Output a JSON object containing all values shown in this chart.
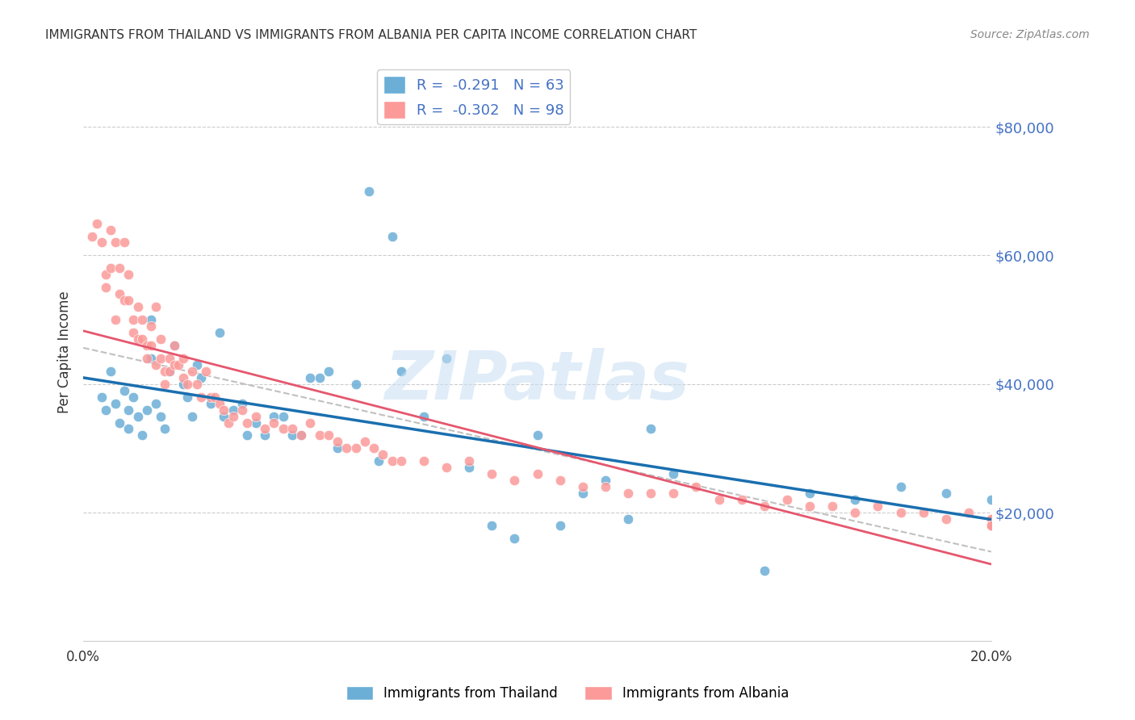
{
  "title": "IMMIGRANTS FROM THAILAND VS IMMIGRANTS FROM ALBANIA PER CAPITA INCOME CORRELATION CHART",
  "source": "Source: ZipAtlas.com",
  "xlabel_bottom": "",
  "ylabel": "Per Capita Income",
  "xlim": [
    0.0,
    0.2
  ],
  "ylim": [
    0,
    90000
  ],
  "x_ticks": [
    0.0,
    0.05,
    0.1,
    0.15,
    0.2
  ],
  "x_tick_labels": [
    "0.0%",
    "",
    "",
    "",
    "20.0%"
  ],
  "y_ticks": [
    20000,
    40000,
    60000,
    80000
  ],
  "y_tick_labels": [
    "$20,000",
    "$40,000",
    "$60,000",
    "$80,000"
  ],
  "legend_entry1": "R =  -0.291   N = 63",
  "legend_entry2": "R =  -0.302   N = 98",
  "color_thailand": "#6baed6",
  "color_albania": "#fb9a99",
  "color_trend_thailand": "#1a6faf",
  "color_trend_albania": "#e5576e",
  "color_trend_dashed": "#c0c0c0",
  "watermark": "ZIPatlas",
  "thailand_x": [
    0.004,
    0.005,
    0.006,
    0.007,
    0.008,
    0.009,
    0.01,
    0.01,
    0.011,
    0.012,
    0.013,
    0.014,
    0.015,
    0.015,
    0.016,
    0.017,
    0.018,
    0.019,
    0.02,
    0.022,
    0.023,
    0.024,
    0.025,
    0.026,
    0.028,
    0.03,
    0.031,
    0.033,
    0.035,
    0.036,
    0.038,
    0.04,
    0.042,
    0.044,
    0.046,
    0.048,
    0.05,
    0.052,
    0.054,
    0.056,
    0.06,
    0.063,
    0.065,
    0.068,
    0.07,
    0.075,
    0.08,
    0.085,
    0.09,
    0.095,
    0.1,
    0.105,
    0.11,
    0.115,
    0.12,
    0.125,
    0.13,
    0.15,
    0.16,
    0.17,
    0.18,
    0.19,
    0.2
  ],
  "thailand_y": [
    38000,
    36000,
    42000,
    37000,
    34000,
    39000,
    36000,
    33000,
    38000,
    35000,
    32000,
    36000,
    50000,
    44000,
    37000,
    35000,
    33000,
    42000,
    46000,
    40000,
    38000,
    35000,
    43000,
    41000,
    37000,
    48000,
    35000,
    36000,
    37000,
    32000,
    34000,
    32000,
    35000,
    35000,
    32000,
    32000,
    41000,
    41000,
    42000,
    30000,
    40000,
    70000,
    28000,
    63000,
    42000,
    35000,
    44000,
    27000,
    18000,
    16000,
    32000,
    18000,
    23000,
    25000,
    19000,
    33000,
    26000,
    11000,
    23000,
    22000,
    24000,
    23000,
    22000
  ],
  "albania_x": [
    0.002,
    0.003,
    0.004,
    0.005,
    0.005,
    0.006,
    0.006,
    0.007,
    0.007,
    0.008,
    0.008,
    0.009,
    0.009,
    0.01,
    0.01,
    0.011,
    0.011,
    0.012,
    0.012,
    0.013,
    0.013,
    0.014,
    0.014,
    0.015,
    0.015,
    0.016,
    0.016,
    0.017,
    0.017,
    0.018,
    0.018,
    0.019,
    0.019,
    0.02,
    0.02,
    0.021,
    0.022,
    0.022,
    0.023,
    0.024,
    0.025,
    0.026,
    0.027,
    0.028,
    0.029,
    0.03,
    0.031,
    0.032,
    0.033,
    0.035,
    0.036,
    0.038,
    0.04,
    0.042,
    0.044,
    0.046,
    0.048,
    0.05,
    0.052,
    0.054,
    0.056,
    0.058,
    0.06,
    0.062,
    0.064,
    0.066,
    0.068,
    0.07,
    0.075,
    0.08,
    0.085,
    0.09,
    0.095,
    0.1,
    0.105,
    0.11,
    0.115,
    0.12,
    0.125,
    0.13,
    0.135,
    0.14,
    0.145,
    0.15,
    0.155,
    0.16,
    0.165,
    0.17,
    0.175,
    0.18,
    0.185,
    0.19,
    0.195,
    0.2,
    0.2,
    0.2,
    0.2,
    0.2
  ],
  "albania_y": [
    63000,
    65000,
    62000,
    57000,
    55000,
    64000,
    58000,
    62000,
    50000,
    58000,
    54000,
    62000,
    53000,
    57000,
    53000,
    50000,
    48000,
    47000,
    52000,
    50000,
    47000,
    46000,
    44000,
    49000,
    46000,
    52000,
    43000,
    47000,
    44000,
    42000,
    40000,
    44000,
    42000,
    46000,
    43000,
    43000,
    44000,
    41000,
    40000,
    42000,
    40000,
    38000,
    42000,
    38000,
    38000,
    37000,
    36000,
    34000,
    35000,
    36000,
    34000,
    35000,
    33000,
    34000,
    33000,
    33000,
    32000,
    34000,
    32000,
    32000,
    31000,
    30000,
    30000,
    31000,
    30000,
    29000,
    28000,
    28000,
    28000,
    27000,
    28000,
    26000,
    25000,
    26000,
    25000,
    24000,
    24000,
    23000,
    23000,
    23000,
    24000,
    22000,
    22000,
    21000,
    22000,
    21000,
    21000,
    20000,
    21000,
    20000,
    20000,
    19000,
    20000,
    19000,
    19000,
    18000,
    18000,
    18000
  ]
}
